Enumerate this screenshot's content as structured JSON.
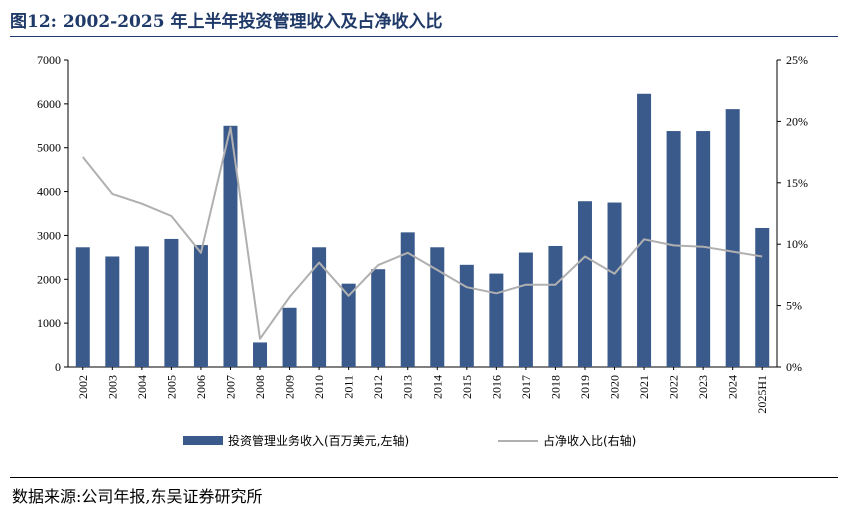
{
  "header": {
    "title": "图12:  2002-2025 年上半年投资管理收入及占净收入比"
  },
  "footer": {
    "source": "数据来源:公司年报,东吴证券研究所"
  },
  "colors": {
    "bar": "#3b5a8c",
    "line": "#b0b0b0",
    "title": "#1f3a68"
  },
  "chart_data": {
    "type": "bar",
    "categories": [
      "2002",
      "2003",
      "2004",
      "2005",
      "2006",
      "2007",
      "2008",
      "2009",
      "2010",
      "2011",
      "2012",
      "2013",
      "2014",
      "2015",
      "2016",
      "2017",
      "2018",
      "2019",
      "2020",
      "2021",
      "2022",
      "2023",
      "2024",
      "2025H1"
    ],
    "series": [
      {
        "name": "投资管理业务收入(百万美元,左轴)",
        "type": "bar",
        "axis": "left",
        "values": [
          2730,
          2520,
          2750,
          2920,
          2780,
          5500,
          560,
          1350,
          2730,
          1900,
          2230,
          3070,
          2730,
          2330,
          2130,
          2610,
          2760,
          3780,
          3750,
          6230,
          5380,
          5380,
          5880,
          3170
        ]
      },
      {
        "name": "占净收入比(右轴)",
        "type": "line",
        "axis": "right",
        "values": [
          17.1,
          14.1,
          13.3,
          12.3,
          9.3,
          19.5,
          2.3,
          5.7,
          8.5,
          5.8,
          8.3,
          9.3,
          7.9,
          6.5,
          6.0,
          6.7,
          6.7,
          9.0,
          7.6,
          10.4,
          9.9,
          9.8,
          9.4,
          9.0
        ]
      }
    ],
    "y_left": {
      "min": 0,
      "max": 7000,
      "ticks": [
        "0",
        "1000",
        "2000",
        "3000",
        "4000",
        "5000",
        "6000",
        "7000"
      ]
    },
    "y_right": {
      "min": 0,
      "max": 25,
      "ticks": [
        "0%",
        "5%",
        "10%",
        "15%",
        "20%",
        "25%"
      ]
    },
    "legend": {
      "bar": "投资管理业务收入(百万美元,左轴)",
      "line": "占净收入比(右轴)"
    },
    "legend_position": "bottom",
    "grid": false
  }
}
